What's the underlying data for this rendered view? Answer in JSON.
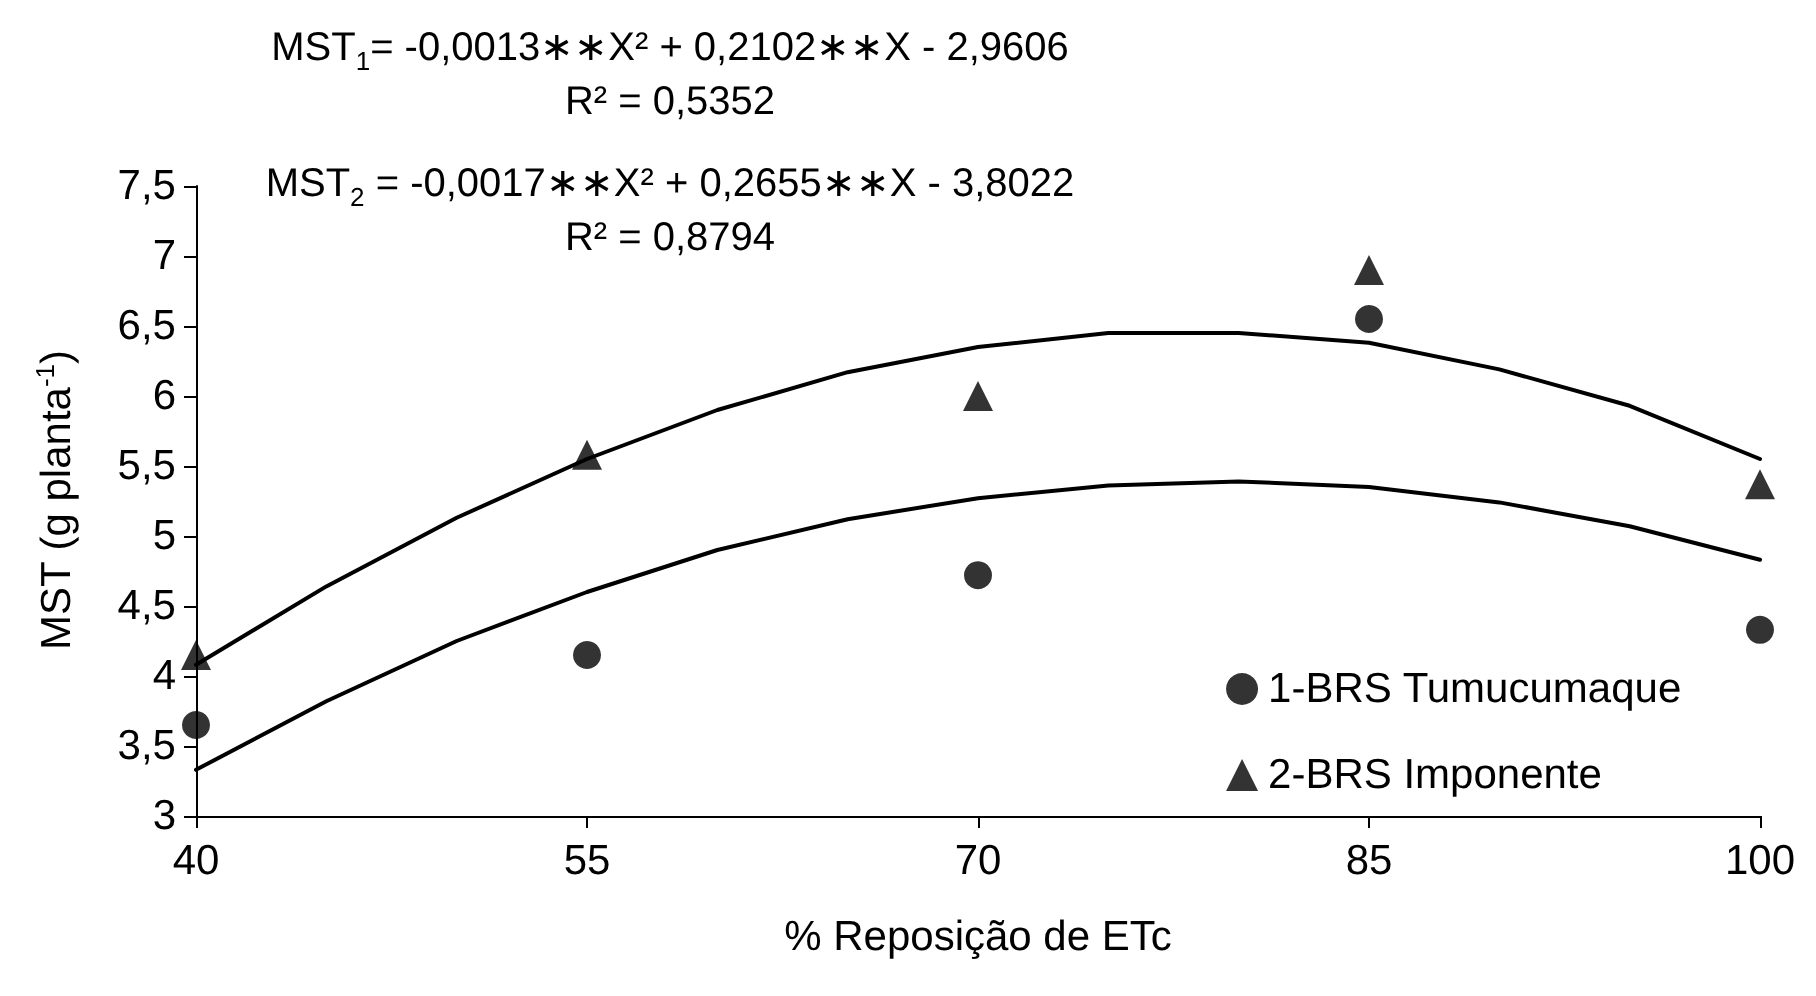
{
  "chart_data": {
    "type": "scatter",
    "annotations": [
      "MST$_{1}$= -0,0013∗∗X² + 0,2102∗∗X - 2,9606",
      "R² = 0,5352",
      "MST$_{2}$ = -0,0017∗∗X² + 0,2655∗∗X - 3,8022",
      "R² = 0,8794"
    ],
    "xlabel": "% Reposição de ETc",
    "ylabel": "MST  (g planta$^{-1}$)",
    "x": [
      40,
      55,
      70,
      85,
      100
    ],
    "series": [
      {
        "name": "1-BRS Tumucumaque",
        "color": "#000000",
        "marker": "circle",
        "values": [
          3.65,
          4.15,
          4.72,
          6.55,
          4.33
        ]
      },
      {
        "name": "2-BRS Imponente",
        "color": "#000000",
        "marker": "triangle",
        "values": [
          4.15,
          5.58,
          6.0,
          6.9,
          5.37
        ]
      },
      {
        "type": "line",
        "color": "#000000",
        "marker": "none",
        "x": [
          40,
          45,
          50,
          55,
          60,
          65,
          70,
          75,
          80,
          85,
          90,
          95,
          100
        ],
        "values": [
          3.33,
          3.82,
          4.25,
          4.6,
          4.9,
          5.12,
          5.27,
          5.36,
          5.39,
          5.35,
          5.24,
          5.07,
          4.83
        ]
      },
      {
        "type": "line",
        "color": "#000000",
        "marker": "none",
        "x": [
          40,
          45,
          50,
          55,
          60,
          65,
          70,
          75,
          80,
          85,
          90,
          95,
          100
        ],
        "values": [
          4.08,
          4.64,
          5.13,
          5.55,
          5.9,
          6.17,
          6.35,
          6.45,
          6.45,
          6.38,
          6.19,
          5.93,
          5.55
        ]
      }
    ],
    "xlim": [
      40,
      100
    ],
    "xticks": [
      40,
      55,
      70,
      85,
      100
    ],
    "ylim": [
      3,
      7.5
    ],
    "yticks": [
      3,
      {
        "value": 3.5,
        "label": "3,5"
      },
      4,
      {
        "value": 4.5,
        "label": "4,5"
      },
      5,
      {
        "value": 5.5,
        "label": "5,5"
      },
      6,
      {
        "value": 6.5,
        "label": "6,5"
      },
      7,
      {
        "value": 7.5,
        "label": "7,5"
      }
    ],
    "grid": false,
    "legend": "bottom right"
  }
}
